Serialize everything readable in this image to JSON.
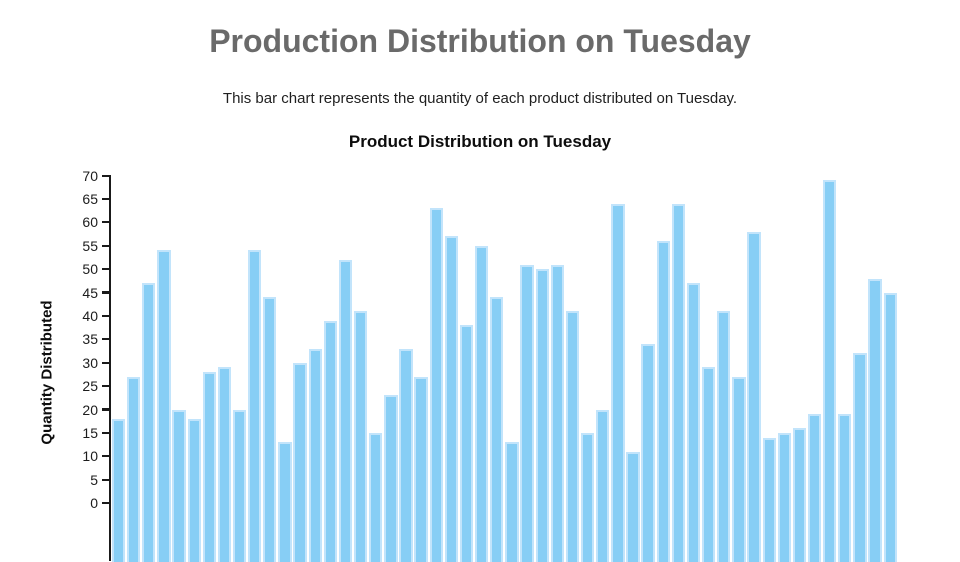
{
  "page": {
    "title": "Production Distribution on Tuesday",
    "subtitle": "This bar chart represents the quantity of each product distributed on Tuesday."
  },
  "chart_data": {
    "type": "bar",
    "title": "Product Distribution on Tuesday",
    "xlabel": "",
    "ylabel": "Quantity Distributed",
    "ylim": [
      0,
      70
    ],
    "ytick_step": 5,
    "yticks": [
      0,
      5,
      10,
      15,
      20,
      25,
      30,
      35,
      40,
      45,
      50,
      55,
      60,
      65,
      70
    ],
    "grid": false,
    "legend": false,
    "num_bars": 52,
    "values": [
      18,
      27,
      47,
      54,
      20,
      18,
      28,
      29,
      20,
      54,
      44,
      13,
      30,
      33,
      39,
      52,
      41,
      15,
      23,
      33,
      27,
      63,
      57,
      38,
      55,
      44,
      13,
      51,
      50,
      51,
      41,
      15,
      20,
      64,
      11,
      34,
      56,
      64,
      47,
      29,
      41,
      27,
      58,
      14,
      15,
      16,
      19,
      69,
      19,
      32,
      48,
      45
    ],
    "layout_note": "x-axis labels and 0-line are cut off by the bottom edge of the viewport"
  },
  "colors": {
    "bar_fill": "#87CEF5",
    "bar_edge": "#c2e4fb",
    "axis": "#1a1a1a",
    "page_title": "#6a6a6a",
    "text": "#1f1f1f",
    "background": "#ffffff"
  }
}
